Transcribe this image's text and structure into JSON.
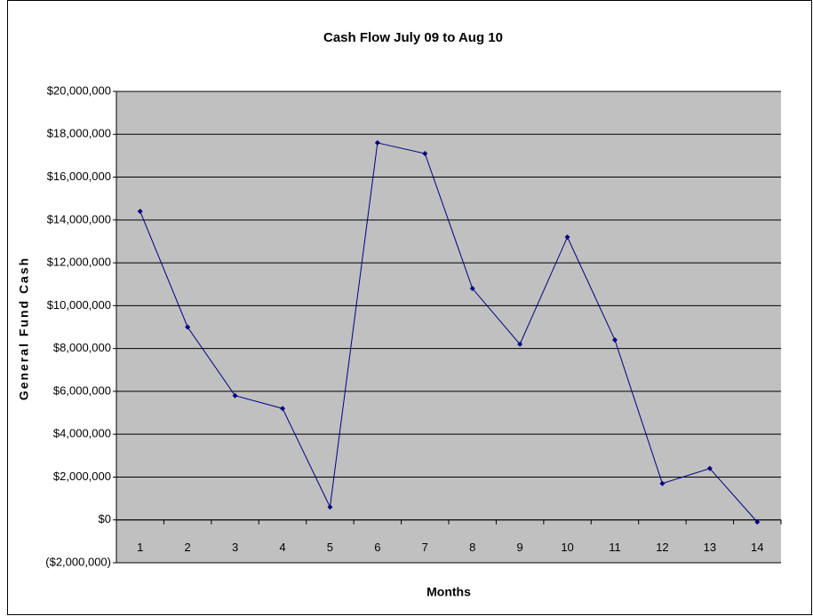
{
  "chart_data": {
    "type": "line",
    "title": "Cash Flow July 09 to Aug 10",
    "x_label": "Months",
    "y_label": "General Fund Cash",
    "categories": [
      "1",
      "2",
      "3",
      "4",
      "5",
      "6",
      "7",
      "8",
      "9",
      "10",
      "11",
      "12",
      "13",
      "14"
    ],
    "series": [
      {
        "name": "General Fund Cash",
        "color": "#000080",
        "values": [
          14400000,
          9000000,
          5800000,
          5200000,
          600000,
          17600000,
          17100000,
          10800000,
          8200000,
          13200000,
          8400000,
          1700000,
          2400000,
          -100000
        ]
      }
    ],
    "ylim": [
      -2000000,
      20000000
    ],
    "yticks": [
      {
        "value": -2000000,
        "label": "($2,000,000)"
      },
      {
        "value": 0,
        "label": "$0"
      },
      {
        "value": 2000000,
        "label": "$2,000,000"
      },
      {
        "value": 4000000,
        "label": "$4,000,000"
      },
      {
        "value": 6000000,
        "label": "$6,000,000"
      },
      {
        "value": 8000000,
        "label": "$8,000,000"
      },
      {
        "value": 10000000,
        "label": "$10,000,000"
      },
      {
        "value": 12000000,
        "label": "$12,000,000"
      },
      {
        "value": 14000000,
        "label": "$14,000,000"
      },
      {
        "value": 16000000,
        "label": "$16,000,000"
      },
      {
        "value": 18000000,
        "label": "$18,000,000"
      },
      {
        "value": 20000000,
        "label": "$20,000,000"
      }
    ],
    "negative_tick_color": "#ff0000",
    "plot_background": "#c0c0c0",
    "grid": true
  }
}
